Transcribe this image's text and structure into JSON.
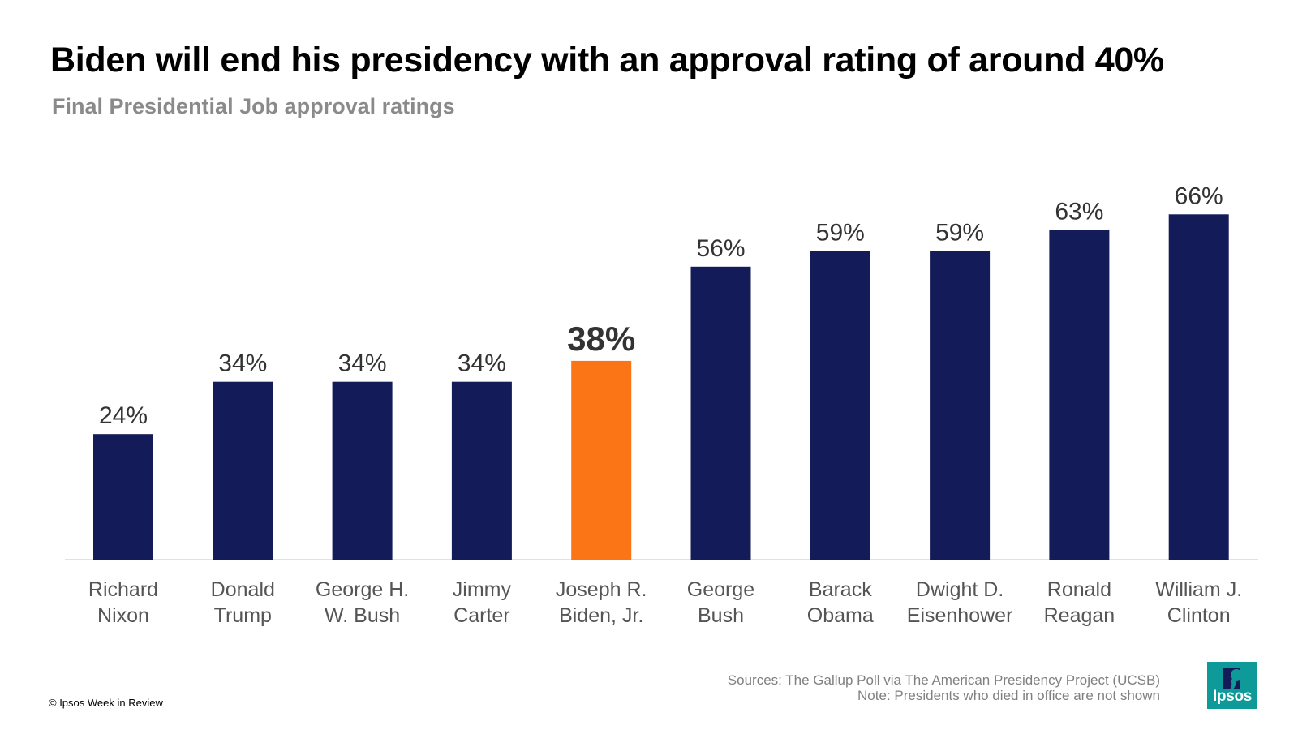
{
  "title": "Biden will end his presidency with an approval rating of around 40%",
  "subtitle": "Final Presidential Job approval ratings",
  "sources_line1": "Sources:  The Gallup Poll via The American Presidency Project (UCSB)",
  "sources_line2": "Note: Presidents who died in office are not shown",
  "copyright": "© Ipsos Week in Review",
  "logo_text": "Ipsos",
  "colors": {
    "bar": "#131b58",
    "highlight": "#fb7415",
    "logo": "#0f9a9a"
  },
  "chart_data": {
    "type": "bar",
    "categories": [
      [
        "Richard",
        "Nixon"
      ],
      [
        "Donald",
        "Trump"
      ],
      [
        "George H.",
        "W. Bush"
      ],
      [
        "Jimmy",
        "Carter"
      ],
      [
        "Joseph R.",
        "Biden, Jr."
      ],
      [
        "George",
        "Bush"
      ],
      [
        "Barack",
        "Obama"
      ],
      [
        "Dwight D.",
        "Eisenhower"
      ],
      [
        "Ronald",
        "Reagan"
      ],
      [
        "William J.",
        "Clinton"
      ]
    ],
    "values": [
      24,
      34,
      34,
      34,
      38,
      56,
      59,
      59,
      63,
      66
    ],
    "data_labels": [
      "24%",
      "34%",
      "34%",
      "34%",
      "38%",
      "56%",
      "59%",
      "59%",
      "63%",
      "66%"
    ],
    "highlight_index": 4,
    "title": "Biden will end his presidency with an approval rating of around 40%",
    "subtitle": "Final Presidential Job approval ratings",
    "xlabel": "",
    "ylabel": "",
    "ylim": [
      0,
      70
    ],
    "grid": false,
    "legend": "none"
  }
}
